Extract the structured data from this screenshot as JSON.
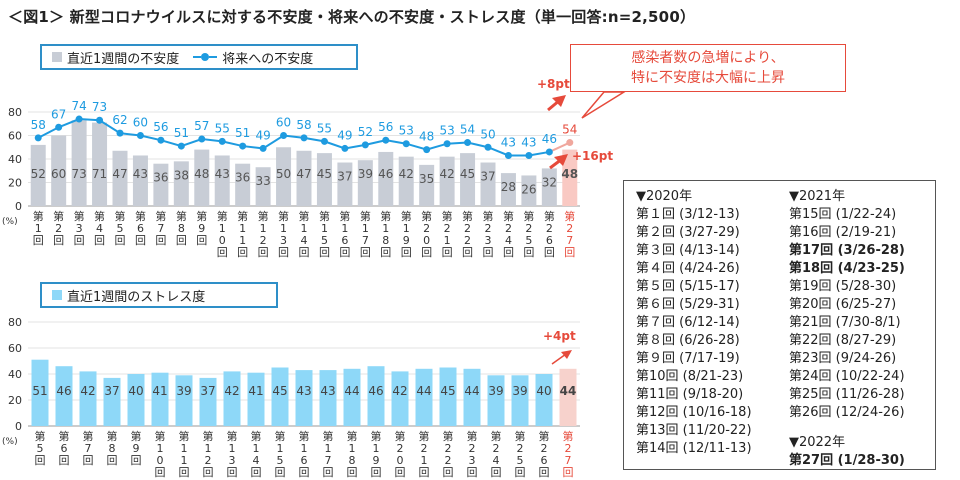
{
  "title": "＜図1＞ 新型コロナウイルスに対する不安度・将来への不安度・ストレス度（単一回答:n=2,500）",
  "colors": {
    "bar_gray": "#c8cdd6",
    "bar_gray_highlight": "#f9c9c3",
    "line_blue": "#1e9be0",
    "highlight_red": "#e64a3b",
    "bar_blue": "#8ed8f8",
    "bar_blue_highlight": "#f7d2cc",
    "legend_border": "#2e8fc8"
  },
  "callout": {
    "line1": "感染者数の急増により、",
    "line2": "特に不安度は大幅に上昇"
  },
  "chart_data": [
    {
      "type": "bar+line",
      "title": "",
      "unit_label": "(%)",
      "ylim": [
        0,
        80
      ],
      "yticks": [
        0,
        20,
        40,
        60,
        80
      ],
      "categories": [
        "第1回",
        "第2回",
        "第3回",
        "第4回",
        "第5回",
        "第6回",
        "第7回",
        "第8回",
        "第9回",
        "第10回",
        "第11回",
        "第12回",
        "第13回",
        "第14回",
        "第15回",
        "第16回",
        "第17回",
        "第18回",
        "第19回",
        "第20回",
        "第21回",
        "第22回",
        "第23回",
        "第24回",
        "第25回",
        "第26回",
        "第27回"
      ],
      "series": [
        {
          "name": "直近1週間の不安度",
          "kind": "bar",
          "values": [
            52,
            60,
            73,
            71,
            47,
            43,
            36,
            38,
            48,
            43,
            36,
            33,
            50,
            47,
            45,
            37,
            39,
            46,
            42,
            35,
            42,
            45,
            37,
            28,
            26,
            32,
            48
          ]
        },
        {
          "name": "将来への不安度",
          "kind": "line",
          "values": [
            58,
            67,
            74,
            73,
            62,
            60,
            56,
            51,
            57,
            55,
            51,
            49,
            60,
            58,
            55,
            49,
            52,
            56,
            53,
            48,
            53,
            54,
            50,
            43,
            43,
            46,
            54
          ]
        }
      ],
      "annotations": [
        "+8pt",
        "+16pt"
      ],
      "legend": "top-left"
    },
    {
      "type": "bar",
      "title": "",
      "unit_label": "(%)",
      "ylim": [
        0,
        80
      ],
      "yticks": [
        0,
        20,
        40,
        60,
        80
      ],
      "categories": [
        "第5回",
        "第6回",
        "第7回",
        "第8回",
        "第9回",
        "第10回",
        "第11回",
        "第12回",
        "第13回",
        "第14回",
        "第15回",
        "第16回",
        "第17回",
        "第18回",
        "第19回",
        "第20回",
        "第21回",
        "第22回",
        "第23回",
        "第24回",
        "第25回",
        "第26回",
        "第27回"
      ],
      "series": [
        {
          "name": "直近1週間のストレス度",
          "kind": "bar",
          "values": [
            51,
            46,
            42,
            37,
            40,
            41,
            39,
            37,
            42,
            41,
            45,
            43,
            43,
            44,
            46,
            42,
            44,
            45,
            44,
            39,
            39,
            40,
            44
          ]
        }
      ],
      "annotations": [
        "+4pt"
      ],
      "legend": "top-left"
    }
  ],
  "schedule": {
    "col1": {
      "year": "▼2020年",
      "rows": [
        {
          "label": "第１回",
          "dates": "(3/12-13)"
        },
        {
          "label": "第２回",
          "dates": "(3/27-29)"
        },
        {
          "label": "第３回",
          "dates": "(4/13-14)"
        },
        {
          "label": "第４回",
          "dates": "(4/24-26)"
        },
        {
          "label": "第５回",
          "dates": "(5/15-17)"
        },
        {
          "label": "第６回",
          "dates": "(5/29-31)"
        },
        {
          "label": "第７回",
          "dates": "(6/12-14)"
        },
        {
          "label": "第８回",
          "dates": "(6/26-28)"
        },
        {
          "label": "第９回",
          "dates": "(7/17-19)"
        },
        {
          "label": "第10回",
          "dates": "(8/21-23)"
        },
        {
          "label": "第11回",
          "dates": "(9/18-20)"
        },
        {
          "label": "第12回",
          "dates": "(10/16-18)"
        },
        {
          "label": "第13回",
          "dates": "(11/20-22)"
        },
        {
          "label": "第14回",
          "dates": "(12/11-13)"
        }
      ]
    },
    "col2": {
      "year": "▼2021年",
      "rows": [
        {
          "label": "第15回",
          "dates": "(1/22-24)"
        },
        {
          "label": "第16回",
          "dates": "(2/19-21)"
        },
        {
          "label": "第17回",
          "dates": "(3/26-28)",
          "bold": true
        },
        {
          "label": "第18回",
          "dates": "(4/23-25)",
          "bold": true
        },
        {
          "label": "第19回",
          "dates": "(5/28-30)"
        },
        {
          "label": "第20回",
          "dates": "(6/25-27)"
        },
        {
          "label": "第21回",
          "dates": "(7/30-8/1)"
        },
        {
          "label": "第22回",
          "dates": "(8/27-29)"
        },
        {
          "label": "第23回",
          "dates": "(9/24-26)"
        },
        {
          "label": "第24回",
          "dates": "(10/22-24)"
        },
        {
          "label": "第25回",
          "dates": "(11/26-28)"
        },
        {
          "label": "第26回",
          "dates": "(12/24-26)"
        }
      ],
      "year2": "▼2022年",
      "rows2": [
        {
          "label": "第27回",
          "dates": "(1/28-30)",
          "bold": true
        }
      ]
    }
  }
}
